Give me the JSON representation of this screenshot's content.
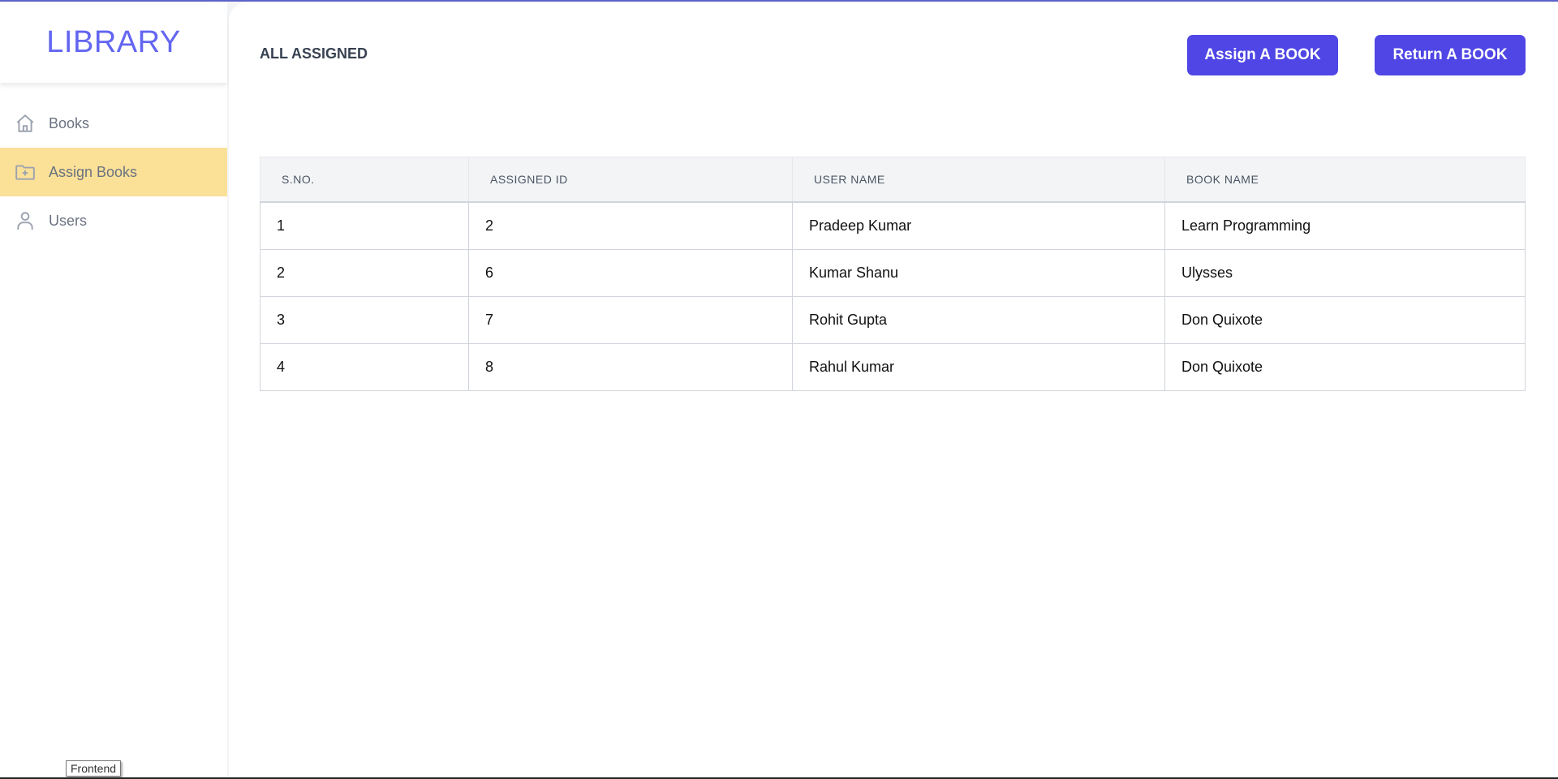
{
  "sidebar": {
    "logo": "LIBRARY",
    "items": [
      {
        "label": "Books",
        "icon": "home-icon",
        "active": false
      },
      {
        "label": "Assign Books",
        "icon": "folder-plus-icon",
        "active": true
      },
      {
        "label": "Users",
        "icon": "user-icon",
        "active": false
      }
    ]
  },
  "header": {
    "title": "ALL ASSIGNED",
    "assign_label": "Assign A BOOK",
    "return_label": "Return A BOOK"
  },
  "table": {
    "columns": [
      "S.NO.",
      "ASSIGNED ID",
      "USER NAME",
      "BOOK NAME"
    ],
    "rows": [
      [
        "1",
        "2",
        "Pradeep Kumar",
        "Learn Programming"
      ],
      [
        "2",
        "6",
        "Kumar Shanu",
        "Ulysses"
      ],
      [
        "3",
        "7",
        "Rohit Gupta",
        "Don Quixote"
      ],
      [
        "4",
        "8",
        "Rahul Kumar",
        "Don Quixote"
      ]
    ]
  },
  "tooltip": "Frontend",
  "colors": {
    "accent": "#4f46e5",
    "logo": "#6366f1",
    "active_nav": "#fbe098"
  }
}
